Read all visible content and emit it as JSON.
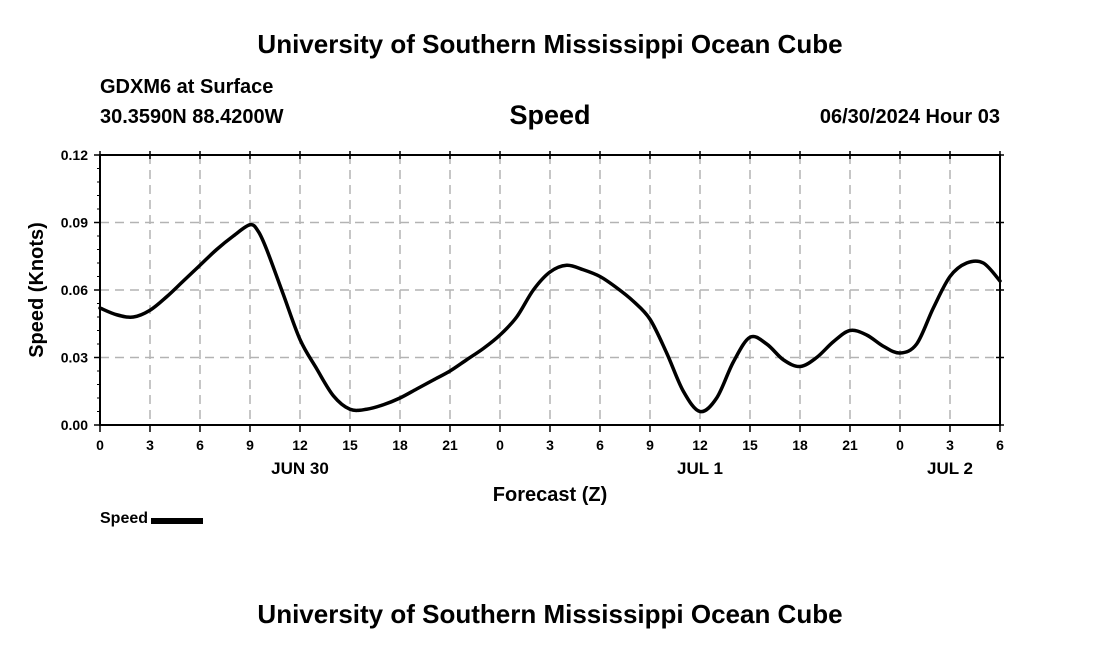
{
  "header": {
    "title": "University of Southern Mississippi Ocean Cube",
    "station": "GDXM6 at Surface",
    "coords": "30.3590N  88.4200W",
    "chart_title": "Speed",
    "datetime": "06/30/2024 Hour 03"
  },
  "footer": {
    "title": "University of Southern Mississippi Ocean Cube"
  },
  "legend": {
    "label": "Speed"
  },
  "colors": {
    "line": "#000000",
    "grid": "#b3b3b3",
    "background": "#ffffff"
  },
  "chart_data": {
    "type": "line",
    "title": "Speed",
    "xlabel": "Forecast (Z)",
    "ylabel": "Speed (Knots)",
    "xlim": [
      0,
      54
    ],
    "ylim": [
      0,
      0.12
    ],
    "grid": true,
    "legend_position": "bottom-left",
    "yticks": [
      0,
      0.03,
      0.06,
      0.09,
      0.12
    ],
    "ytick_labels": [
      "0.00",
      "0.03",
      "0.06",
      "0.09",
      "0.12"
    ],
    "xticks": [
      0,
      3,
      6,
      9,
      12,
      15,
      18,
      21,
      24,
      27,
      30,
      33,
      36,
      39,
      42,
      45,
      48,
      51,
      54
    ],
    "xtick_labels": [
      "0",
      "3",
      "6",
      "9",
      "12",
      "15",
      "18",
      "21",
      "0",
      "3",
      "6",
      "9",
      "12",
      "15",
      "18",
      "21",
      "0",
      "3",
      "6"
    ],
    "date_labels": [
      {
        "x": 12,
        "label": "JUN 30"
      },
      {
        "x": 36,
        "label": "JUL 1"
      },
      {
        "x": 51,
        "label": "JUL 2"
      }
    ],
    "series": [
      {
        "name": "Speed",
        "x": [
          0,
          1,
          2,
          3,
          4,
          5,
          6,
          7,
          8,
          9,
          9.5,
          10,
          11,
          12,
          13,
          14,
          15,
          16,
          17,
          18,
          19,
          20,
          21,
          22,
          23,
          24,
          25,
          26,
          27,
          28,
          29,
          30,
          31,
          32,
          33,
          34,
          35,
          36,
          37,
          38,
          39,
          40,
          41,
          42,
          43,
          44,
          45,
          46,
          47,
          48,
          49,
          50,
          51,
          52,
          53,
          54
        ],
        "values": [
          0.052,
          0.049,
          0.048,
          0.051,
          0.057,
          0.064,
          0.071,
          0.078,
          0.084,
          0.089,
          0.086,
          0.078,
          0.058,
          0.038,
          0.025,
          0.013,
          0.007,
          0.007,
          0.009,
          0.012,
          0.016,
          0.02,
          0.024,
          0.029,
          0.034,
          0.04,
          0.048,
          0.06,
          0.068,
          0.071,
          0.069,
          0.066,
          0.061,
          0.055,
          0.047,
          0.032,
          0.015,
          0.006,
          0.012,
          0.028,
          0.039,
          0.036,
          0.029,
          0.026,
          0.03,
          0.037,
          0.042,
          0.04,
          0.035,
          0.032,
          0.036,
          0.052,
          0.066,
          0.072,
          0.072,
          0.064
        ]
      }
    ]
  }
}
